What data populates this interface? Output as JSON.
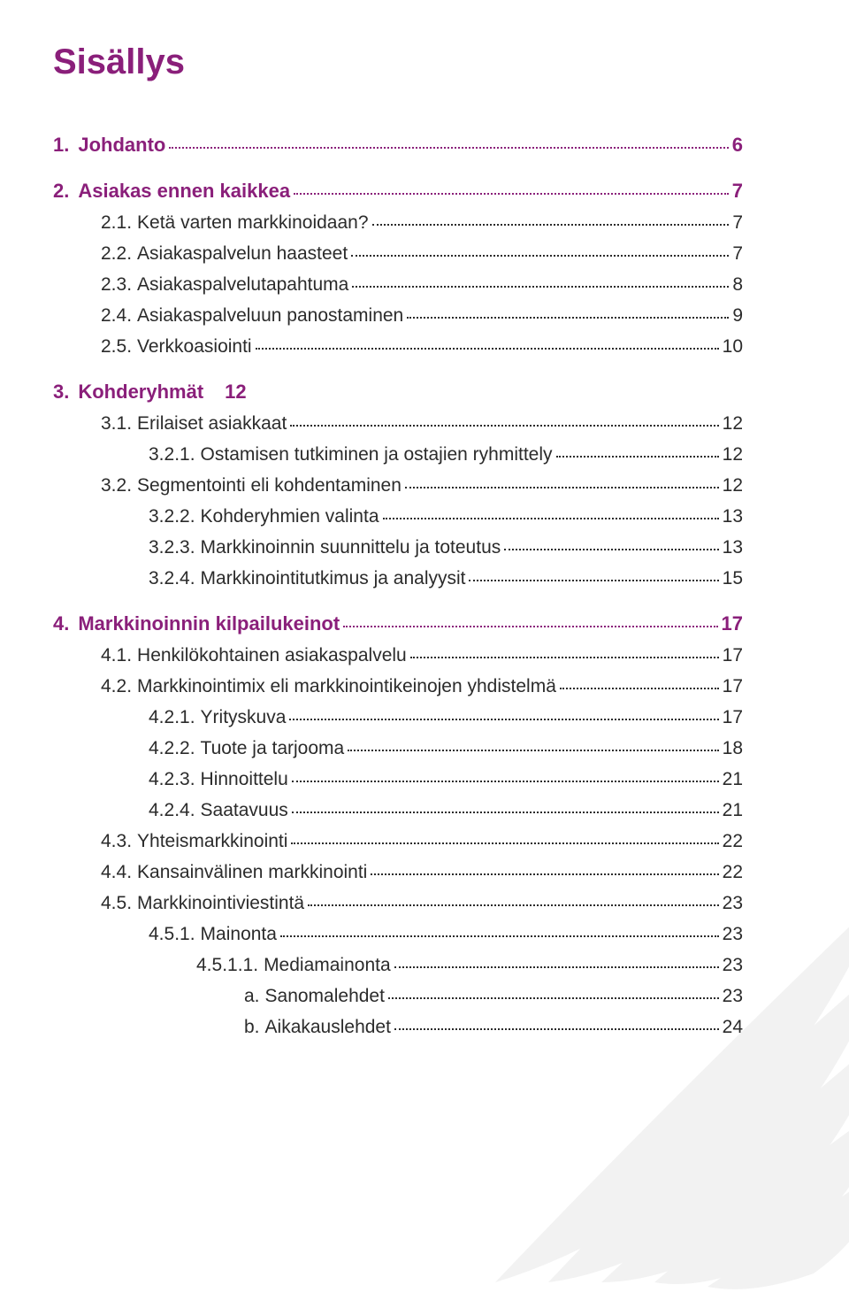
{
  "title": {
    "text": "Sisällys",
    "color": "#8a1f7a",
    "fontsize": 40
  },
  "colors": {
    "accent": "#8a1f7a",
    "body_text": "#2b2b2b",
    "leader": "#2b2b2b",
    "feather_fill": "#f2f2f2"
  },
  "fontsizes": {
    "section": 22,
    "body": 21
  },
  "spacing": {
    "section_gap": 26,
    "line_gap": 11,
    "indent_lvl1": 54,
    "indent_lvl2": 108,
    "indent_lvl3": 162,
    "indent_lvl4": 216
  },
  "toc": [
    {
      "type": "section",
      "num": "1.",
      "label": "Johdanto",
      "page": "6"
    },
    {
      "type": "section",
      "num": "2.",
      "label": "Asiakas ennen kaikkea",
      "page": "7"
    },
    {
      "type": "lvl1",
      "num": "2.1.",
      "label": "Ketä varten markkinoidaan?",
      "page": "7"
    },
    {
      "type": "lvl1",
      "num": "2.2.",
      "label": "Asiakaspalvelun haasteet",
      "page": "7"
    },
    {
      "type": "lvl1",
      "num": "2.3.",
      "label": "Asiakaspalvelutapahtuma",
      "page": "8"
    },
    {
      "type": "lvl1",
      "num": "2.4.",
      "label": "Asiakaspalveluun panostaminen",
      "page": "9"
    },
    {
      "type": "lvl1",
      "num": "2.5.",
      "label": "Verkkoasiointi",
      "page": "10"
    },
    {
      "type": "section-nopage",
      "num": "3.",
      "label": "Kohderyhmät",
      "page": "12"
    },
    {
      "type": "lvl1",
      "num": "3.1.",
      "label": "Erilaiset asiakkaat",
      "page": "12"
    },
    {
      "type": "lvl2",
      "num": "3.2.1.",
      "label": "Ostamisen tutkiminen ja ostajien ryhmittely",
      "page": "12"
    },
    {
      "type": "lvl1",
      "num": "3.2.",
      "label": "Segmentointi eli kohdentaminen",
      "page": "12"
    },
    {
      "type": "lvl2",
      "num": "3.2.2.",
      "label": "Kohderyhmien valinta",
      "page": "13"
    },
    {
      "type": "lvl2",
      "num": "3.2.3.",
      "label": "Markkinoinnin suunnittelu ja toteutus",
      "page": "13"
    },
    {
      "type": "lvl2",
      "num": "3.2.4.",
      "label": "Markkinointitutkimus ja analyysit",
      "page": "15"
    },
    {
      "type": "section",
      "num": "4.",
      "label": "Markkinoinnin kilpailukeinot",
      "page": "17"
    },
    {
      "type": "lvl1",
      "num": "4.1.",
      "label": "Henkilökohtainen asiakaspalvelu",
      "page": "17"
    },
    {
      "type": "lvl1",
      "num": "4.2.",
      "label": "Markkinointimix eli markkinointikeinojen yhdistelmä",
      "page": "17"
    },
    {
      "type": "lvl2",
      "num": "4.2.1.",
      "label": "Yrityskuva",
      "page": "17"
    },
    {
      "type": "lvl2",
      "num": "4.2.2.",
      "label": "Tuote ja tarjooma",
      "page": "18"
    },
    {
      "type": "lvl2",
      "num": "4.2.3.",
      "label": "Hinnoittelu",
      "page": "21"
    },
    {
      "type": "lvl2",
      "num": "4.2.4.",
      "label": "Saatavuus",
      "page": "21"
    },
    {
      "type": "lvl1",
      "num": "4.3.",
      "label": "Yhteismarkkinointi",
      "page": "22"
    },
    {
      "type": "lvl1",
      "num": "4.4.",
      "label": "Kansainvälinen markkinointi",
      "page": "22"
    },
    {
      "type": "lvl1",
      "num": "4.5.",
      "label": "Markkinointiviestintä",
      "page": "23"
    },
    {
      "type": "lvl2",
      "num": "4.5.1.",
      "label": "Mainonta",
      "page": "23"
    },
    {
      "type": "lvl3",
      "num": "4.5.1.1.",
      "label": "Mediamainonta",
      "page": "23"
    },
    {
      "type": "lvl4",
      "num": "a.",
      "label": "Sanomalehdet",
      "page": "23"
    },
    {
      "type": "lvl4",
      "num": "b.",
      "label": "Aikakauslehdet",
      "page": "24"
    }
  ]
}
